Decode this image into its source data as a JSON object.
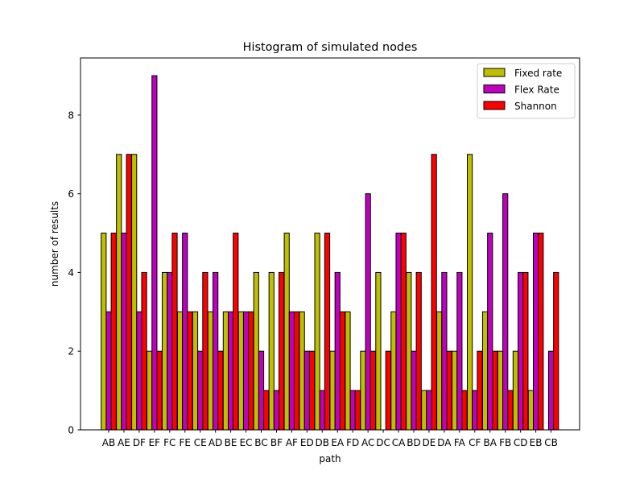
{
  "chart_data": {
    "type": "bar",
    "title": "Histogram of simulated nodes",
    "xlabel": "path",
    "ylabel": "number of results",
    "ylim": [
      0,
      9.45
    ],
    "yticks": [
      0,
      2,
      4,
      6,
      8
    ],
    "grid": false,
    "legend_position": "top-right",
    "categories": [
      "AB",
      "AE",
      "DF",
      "EF",
      "FC",
      "FE",
      "CE",
      "AD",
      "BE",
      "EC",
      "BC",
      "BF",
      "AF",
      "ED",
      "DB",
      "EA",
      "FD",
      "AC",
      "DC",
      "CA",
      "BD",
      "DE",
      "DA",
      "FA",
      "CF",
      "BA",
      "FB",
      "CD",
      "EB",
      "CB"
    ],
    "series": [
      {
        "name": "Fixed rate",
        "color": "#bfbf00",
        "values": [
          5,
          7,
          7,
          2,
          4,
          3,
          3,
          3,
          3,
          3,
          4,
          4,
          5,
          3,
          5,
          2,
          3,
          2,
          4,
          3,
          4,
          1,
          3,
          2,
          7,
          3,
          2,
          2,
          1,
          0
        ]
      },
      {
        "name": "Flex Rate",
        "color": "#bf00bf",
        "values": [
          3,
          5,
          3,
          9,
          4,
          5,
          2,
          4,
          3,
          3,
          2,
          1,
          3,
          2,
          1,
          4,
          1,
          6,
          0,
          5,
          2,
          1,
          4,
          4,
          1,
          5,
          6,
          4,
          5,
          2
        ]
      },
      {
        "name": "Shannon",
        "color": "#ff0000",
        "values": [
          5,
          7,
          4,
          2,
          5,
          3,
          4,
          2,
          5,
          3,
          1,
          4,
          3,
          2,
          5,
          3,
          1,
          2,
          2,
          5,
          4,
          7,
          2,
          1,
          2,
          2,
          1,
          4,
          5,
          4
        ]
      }
    ]
  }
}
